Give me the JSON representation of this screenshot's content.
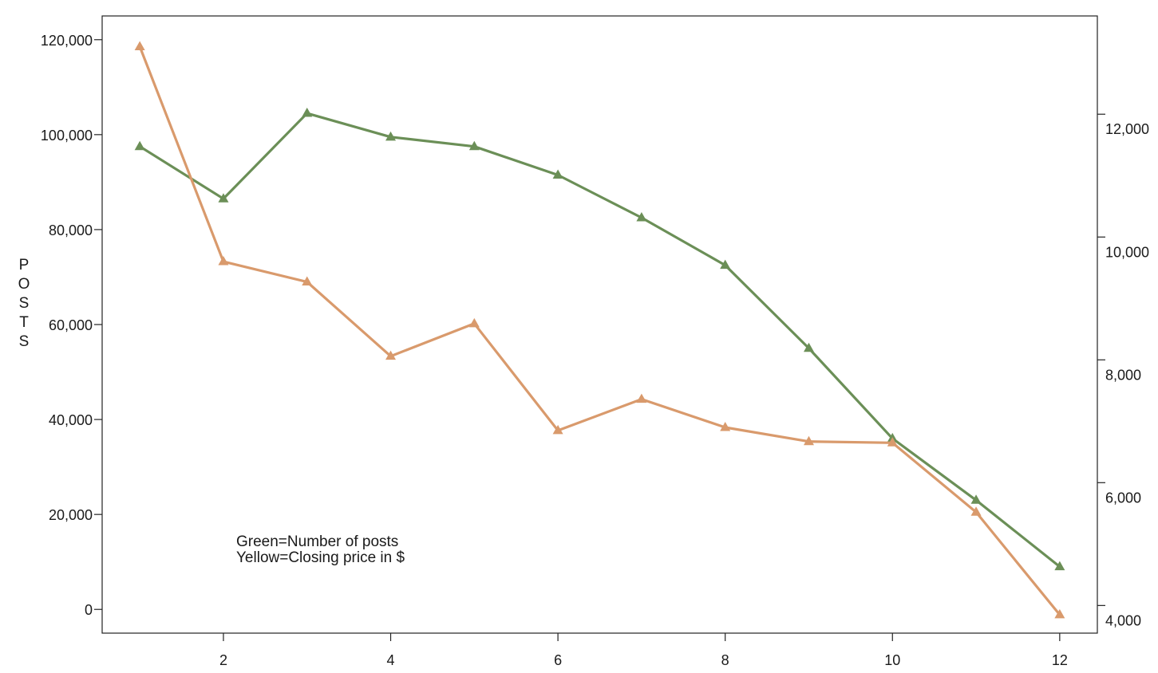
{
  "chart_data": {
    "type": "line",
    "title": "",
    "xlabel": "",
    "ylabel": "POSTS",
    "y2label": "",
    "xlim": [
      0.55,
      12.45
    ],
    "ylim": [
      -5000,
      125000
    ],
    "y2lim": [
      3550,
      13600
    ],
    "x_ticks": [
      2,
      4,
      6,
      8,
      10,
      12
    ],
    "y_ticks": [
      0,
      20000,
      40000,
      60000,
      80000,
      100000,
      120000
    ],
    "y2_ticks": [
      4000,
      6000,
      8000,
      10000,
      12000
    ],
    "grid": false,
    "x": [
      1,
      2,
      3,
      4,
      5,
      6,
      7,
      8,
      9,
      10,
      11,
      12
    ],
    "series": [
      {
        "axis": "left",
        "color": "#6b8f57",
        "values": [
          97500,
          86500,
          104500,
          99500,
          97500,
          91500,
          82500,
          72500,
          55000,
          36000,
          23000,
          9000
        ]
      },
      {
        "axis": "right",
        "color": "#d99a6c",
        "values": [
          13100,
          9600,
          9270,
          8060,
          8590,
          6850,
          7360,
          6900,
          6670,
          6650,
          5520,
          3850
        ]
      }
    ],
    "annotations": [
      "Green=Number of posts",
      "Yellow=Closing price in $"
    ]
  }
}
